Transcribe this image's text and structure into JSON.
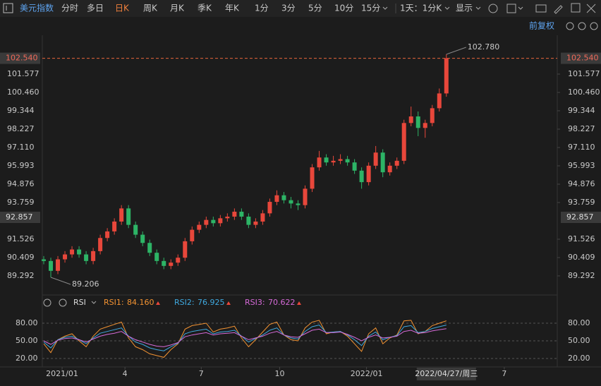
{
  "toolbar": {
    "symbol": "美元指数",
    "periods": [
      "分时",
      "多日",
      "日K",
      "周K",
      "月K",
      "季K",
      "年K",
      "1分",
      "3分",
      "5分",
      "10分",
      "15分"
    ],
    "active": "日K",
    "interval": "1天：1分K",
    "display": "显示",
    "adjust": "前复权"
  },
  "chart_data": [
    {
      "type": "candlestick",
      "up_color": "#e8473b",
      "down_color": "#2db466",
      "candles": [
        [
          90.3,
          90.5,
          90.0,
          90.2
        ],
        [
          90.2,
          90.4,
          89.206,
          89.6
        ],
        [
          89.6,
          90.5,
          89.4,
          90.3
        ],
        [
          90.3,
          90.8,
          90.1,
          90.6
        ],
        [
          90.6,
          91.1,
          90.4,
          90.9
        ],
        [
          90.9,
          91.1,
          90.4,
          90.6
        ],
        [
          90.6,
          90.8,
          90.0,
          90.2
        ],
        [
          90.2,
          91.0,
          90.0,
          90.8
        ],
        [
          90.8,
          91.8,
          90.6,
          91.6
        ],
        [
          91.6,
          92.2,
          91.4,
          92.0
        ],
        [
          92.0,
          92.8,
          91.8,
          92.6
        ],
        [
          92.6,
          93.6,
          92.4,
          93.4
        ],
        [
          93.4,
          93.6,
          92.2,
          92.4
        ],
        [
          92.4,
          92.6,
          91.6,
          91.8
        ],
        [
          91.8,
          92.0,
          91.1,
          91.3
        ],
        [
          91.3,
          91.5,
          90.5,
          90.7
        ],
        [
          90.7,
          90.9,
          90.0,
          90.2
        ],
        [
          90.2,
          90.4,
          89.7,
          89.9
        ],
        [
          89.9,
          90.3,
          89.7,
          90.1
        ],
        [
          90.1,
          90.6,
          89.9,
          90.4
        ],
        [
          90.4,
          91.6,
          90.2,
          91.4
        ],
        [
          91.4,
          92.3,
          91.2,
          92.1
        ],
        [
          92.1,
          92.6,
          91.9,
          92.4
        ],
        [
          92.4,
          92.9,
          92.2,
          92.7
        ],
        [
          92.7,
          92.9,
          92.3,
          92.5
        ],
        [
          92.5,
          93.0,
          92.3,
          92.8
        ],
        [
          92.8,
          93.1,
          92.6,
          92.9
        ],
        [
          92.9,
          93.4,
          92.7,
          93.2
        ],
        [
          93.2,
          93.4,
          92.7,
          92.9
        ],
        [
          92.9,
          93.1,
          92.2,
          92.4
        ],
        [
          92.4,
          92.8,
          92.2,
          92.6
        ],
        [
          92.6,
          93.3,
          92.4,
          93.1
        ],
        [
          93.1,
          94.0,
          92.9,
          93.8
        ],
        [
          93.8,
          94.5,
          93.6,
          94.2
        ],
        [
          94.2,
          94.4,
          93.7,
          93.9
        ],
        [
          93.9,
          94.1,
          93.4,
          93.7
        ],
        [
          93.7,
          93.9,
          93.3,
          93.6
        ],
        [
          93.6,
          94.8,
          93.4,
          94.6
        ],
        [
          94.6,
          96.1,
          94.4,
          95.9
        ],
        [
          95.9,
          96.9,
          95.7,
          96.5
        ],
        [
          96.5,
          96.7,
          96.0,
          96.2
        ],
        [
          96.2,
          96.6,
          96.0,
          96.3
        ],
        [
          96.3,
          96.7,
          96.1,
          96.4
        ],
        [
          96.4,
          96.6,
          96.0,
          96.2
        ],
        [
          96.2,
          96.4,
          95.5,
          95.7
        ],
        [
          95.7,
          95.9,
          94.6,
          95.0
        ],
        [
          95.0,
          96.2,
          94.8,
          96.0
        ],
        [
          96.0,
          97.2,
          95.8,
          96.8
        ],
        [
          96.8,
          97.0,
          95.3,
          95.6
        ],
        [
          95.6,
          96.2,
          95.4,
          96.0
        ],
        [
          96.0,
          96.5,
          95.8,
          96.3
        ],
        [
          96.3,
          98.8,
          96.1,
          98.6
        ],
        [
          98.6,
          99.6,
          98.4,
          99.0
        ],
        [
          99.0,
          99.3,
          97.8,
          98.3
        ],
        [
          98.3,
          98.8,
          97.7,
          98.6
        ],
        [
          98.6,
          99.7,
          98.4,
          99.5
        ],
        [
          99.5,
          100.7,
          99.3,
          100.4
        ],
        [
          100.4,
          102.78,
          100.2,
          102.54
        ]
      ],
      "xlim": [
        -0.2,
        72.7
      ],
      "ylim": [
        88.26,
        103.94
      ],
      "yticks": [
        101.577,
        {
          "value": 100.46,
          "label": "100.460"
        },
        99.344,
        98.227,
        {
          "value": 97.11,
          "label": "97.110"
        },
        95.993,
        94.876,
        93.759,
        91.526,
        90.409,
        89.292
      ],
      "last_price": {
        "value": 102.54,
        "label": "102.540"
      },
      "marker_price": {
        "value": 92.857,
        "label": "92.857"
      },
      "high_label": {
        "value": 102.78,
        "label": "102.780"
      },
      "low_label": {
        "value": 89.206,
        "label": "89.206"
      }
    },
    {
      "type": "line",
      "indicator": "RSI",
      "xlim": [
        -0.2,
        72.7
      ],
      "ylim": [
        12,
        96
      ],
      "yticks": [
        {
          "value": 80,
          "label": "80.00"
        },
        {
          "value": 50,
          "label": "50.00"
        },
        {
          "value": 20,
          "label": "20.00"
        }
      ],
      "series": [
        {
          "name": "RSI1:",
          "color": "#f39332",
          "current_label": "84.160",
          "values": [
            45,
            30,
            52,
            58,
            62,
            50,
            40,
            58,
            70,
            74,
            78,
            82,
            55,
            40,
            35,
            28,
            25,
            22,
            35,
            45,
            70,
            76,
            78,
            80,
            65,
            70,
            72,
            75,
            55,
            40,
            52,
            65,
            78,
            82,
            60,
            52,
            50,
            72,
            82,
            85,
            62,
            65,
            66,
            58,
            45,
            32,
            62,
            72,
            45,
            55,
            60,
            84,
            85,
            62,
            66,
            76,
            80,
            84.16
          ]
        },
        {
          "name": "RSI2:",
          "color": "#3fa9e0",
          "current_label": "76.925",
          "values": [
            48,
            38,
            52,
            56,
            58,
            52,
            45,
            55,
            63,
            66,
            69,
            72,
            58,
            48,
            44,
            38,
            35,
            33,
            40,
            46,
            62,
            66,
            68,
            70,
            62,
            65,
            66,
            68,
            58,
            48,
            54,
            60,
            68,
            72,
            60,
            55,
            53,
            66,
            74,
            77,
            64,
            65,
            66,
            60,
            52,
            42,
            58,
            65,
            52,
            56,
            59,
            74,
            76,
            64,
            66,
            71,
            74,
            76.925
          ]
        },
        {
          "name": "RSI3:",
          "color": "#d66ad8",
          "current_label": "70.622",
          "values": [
            50,
            44,
            51,
            54,
            55,
            52,
            48,
            53,
            58,
            61,
            63,
            66,
            58,
            52,
            48,
            44,
            41,
            40,
            43,
            47,
            57,
            60,
            62,
            64,
            60,
            62,
            63,
            64,
            58,
            52,
            55,
            58,
            63,
            66,
            60,
            57,
            56,
            62,
            68,
            70,
            64,
            64,
            65,
            61,
            56,
            50,
            56,
            60,
            55,
            56,
            58,
            66,
            68,
            63,
            64,
            67,
            69,
            70.622
          ]
        }
      ],
      "xticks": [
        {
          "value": 2.6,
          "label": "2021/01"
        },
        {
          "value": 11.5,
          "label": "4"
        },
        {
          "value": 22.3,
          "label": "7"
        },
        {
          "value": 33.4,
          "label": "10"
        },
        {
          "value": 45.7,
          "label": "2022/01"
        },
        {
          "value": 65.2,
          "label": "7"
        }
      ],
      "cursor_x": {
        "value": 57,
        "label": "2022/04/27/周三"
      }
    }
  ]
}
